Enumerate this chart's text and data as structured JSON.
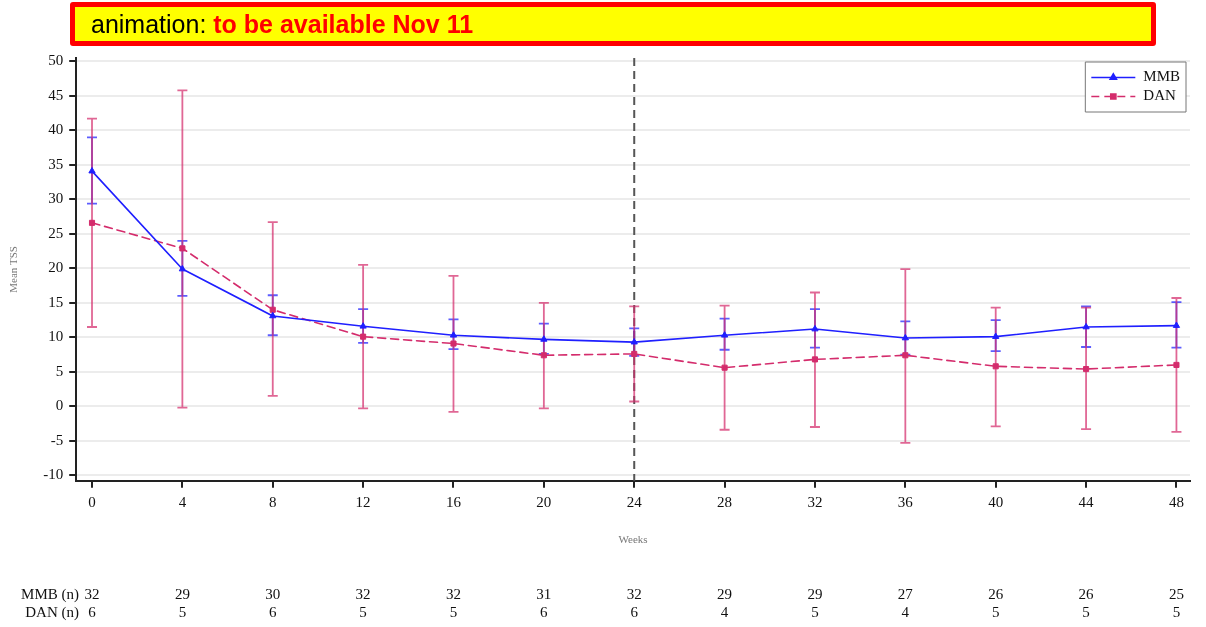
{
  "chart_data": {
    "type": "line",
    "xlabel": "Weeks",
    "ylabel": "Mean TSS",
    "x": [
      0,
      4,
      8,
      12,
      16,
      20,
      24,
      28,
      32,
      36,
      40,
      44,
      48
    ],
    "series": [
      {
        "name": "MMB",
        "color": "#1f1fff",
        "marker": "triangle",
        "line_style": "solid",
        "values": [
          34.1,
          19.9,
          13.1,
          11.6,
          10.3,
          9.7,
          9.3,
          10.3,
          11.2,
          9.9,
          10.1,
          11.5,
          11.7
        ],
        "errors": [
          [
            29.4,
            39.0
          ],
          [
            16.0,
            24.0
          ],
          [
            10.3,
            16.1
          ],
          [
            9.2,
            14.1
          ],
          [
            8.3,
            12.6
          ],
          [
            7.6,
            12.0
          ],
          [
            7.3,
            11.3
          ],
          [
            8.2,
            12.7
          ],
          [
            8.5,
            14.1
          ],
          [
            7.5,
            12.3
          ],
          [
            8.0,
            12.5
          ],
          [
            8.6,
            14.5
          ],
          [
            8.5,
            15.1
          ]
        ]
      },
      {
        "name": "DAN",
        "color": "#d42c6c",
        "marker": "square",
        "line_style": "dashed",
        "values": [
          26.6,
          22.9,
          14.0,
          10.1,
          9.1,
          7.4,
          7.6,
          5.6,
          6.8,
          7.4,
          5.8,
          5.4,
          6.0
        ],
        "errors": [
          [
            11.5,
            41.7
          ],
          [
            -0.2,
            45.8
          ],
          [
            1.5,
            26.7
          ],
          [
            -0.3,
            20.5
          ],
          [
            -0.8,
            18.9
          ],
          [
            -0.3,
            15.0
          ],
          [
            0.7,
            14.5
          ],
          [
            -3.4,
            14.6
          ],
          [
            -3.0,
            16.5
          ],
          [
            -5.3,
            19.9
          ],
          [
            -2.9,
            14.3
          ],
          [
            -3.3,
            14.3
          ],
          [
            -3.7,
            15.7
          ]
        ]
      }
    ],
    "xlim": [
      -0.7,
      48.6
    ],
    "xticks": [
      0,
      4,
      8,
      12,
      16,
      20,
      24,
      28,
      32,
      36,
      40,
      44,
      48
    ],
    "ylim": [
      -10.8,
      50.5
    ],
    "yticks": [
      -10,
      -5,
      0,
      5,
      10,
      15,
      20,
      25,
      30,
      35,
      40,
      45,
      50
    ],
    "grid": "y",
    "legend": "top right",
    "ref_lines": [
      {
        "axis": "x",
        "value": 24,
        "color": "#555555",
        "line_style": "dashed"
      }
    ],
    "annotations": [
      "animation: to be available Nov 11",
      "MMB (n)",
      "32",
      "29",
      "30",
      "32",
      "32",
      "31",
      "32",
      "29",
      "29",
      "27",
      "26",
      "26",
      "25",
      "DAN (n)",
      "6",
      "5",
      "6",
      "5",
      "5",
      "6",
      "6",
      "4",
      "5",
      "4",
      "5",
      "5",
      "5"
    ]
  }
}
